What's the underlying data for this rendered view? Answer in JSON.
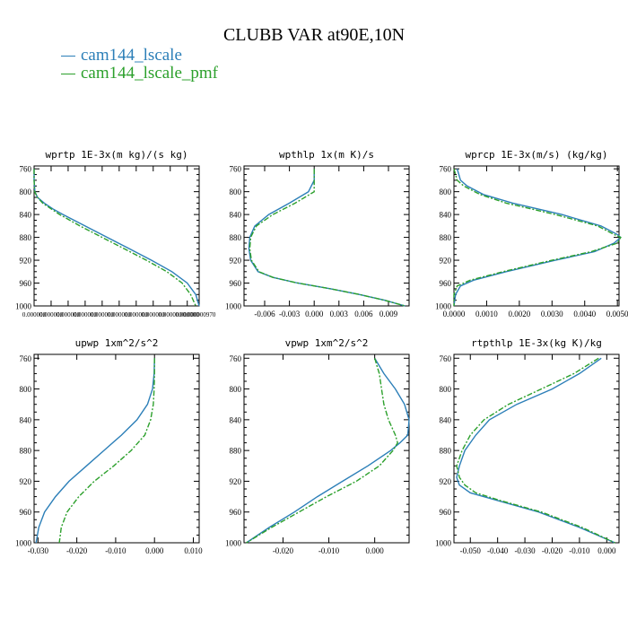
{
  "title": "CLUBB VAR at90E,10N",
  "colors": {
    "series_1": "#2c7fb8",
    "series_2": "#2ca02c"
  },
  "legend": [
    {
      "label": "cam144_lscale"
    },
    {
      "label": "cam144_lscale_pmf"
    }
  ],
  "chart_data": [
    {
      "type": "line",
      "title": "wprtp  1E-3x(m kg)/(s kg)",
      "xlim": [
        0.0,
        9.7e-07
      ],
      "ylim": [
        1000,
        755
      ],
      "yticks": [
        760,
        800,
        840,
        880,
        920,
        960,
        1000
      ],
      "xticks": [
        0.0,
        1e-07,
        2e-07,
        3e-07,
        4e-07,
        5e-07,
        6e-07,
        7e-07,
        8e-07,
        9e-07
      ],
      "xtick_labels": [
        "0.000000",
        "0.000000",
        "0.000000",
        "0.000000",
        "0.000000",
        "0.000000",
        "0.000000",
        "0.000000",
        "0.000000",
        "0.000000"
      ],
      "x_end_label": "0.000000970",
      "series": [
        {
          "name": "cam144_lscale",
          "y": [
            760,
            780,
            800,
            810,
            820,
            830,
            840,
            860,
            880,
            900,
            920,
            940,
            960,
            980,
            1000
          ],
          "x": [
            0.0,
            0.0,
            5e-09,
            2e-08,
            6e-08,
            1.1e-07,
            1.7e-07,
            3e-07,
            4.3e-07,
            5.6e-07,
            6.9e-07,
            8.1e-07,
            9e-07,
            9.5e-07,
            9.7e-07
          ]
        },
        {
          "name": "cam144_lscale_pmf",
          "y": [
            760,
            780,
            800,
            810,
            820,
            830,
            840,
            860,
            880,
            900,
            920,
            940,
            960,
            980,
            1000
          ],
          "x": [
            0.0,
            0.0,
            3e-09,
            2e-08,
            5e-08,
            1e-07,
            1.5e-07,
            2.7e-07,
            4e-07,
            5.3e-07,
            6.6e-07,
            7.8e-07,
            8.7e-07,
            9.2e-07,
            9.5e-07
          ]
        }
      ]
    },
    {
      "type": "line",
      "title": "wpthlp  1x(m K)/s",
      "xlim": [
        -0.0085,
        0.0115
      ],
      "ylim": [
        1000,
        755
      ],
      "yticks": [
        760,
        800,
        840,
        880,
        920,
        960,
        1000
      ],
      "xticks": [
        -0.006,
        -0.003,
        0.0,
        0.003,
        0.006,
        0.009
      ],
      "xtick_labels": [
        "-0.006",
        "-0.003",
        "0.000",
        "0.003",
        "0.006",
        "0.009"
      ],
      "series": [
        {
          "name": "cam144_lscale",
          "y": [
            760,
            780,
            800,
            820,
            840,
            860,
            880,
            900,
            920,
            940,
            950,
            960,
            970,
            980,
            990,
            1000
          ],
          "x": [
            0.0,
            0.0,
            -0.0007,
            -0.003,
            -0.0055,
            -0.0072,
            -0.0078,
            -0.0079,
            -0.0077,
            -0.0068,
            -0.005,
            -0.002,
            0.002,
            0.0055,
            0.0085,
            0.011
          ]
        },
        {
          "name": "cam144_lscale_pmf",
          "y": [
            760,
            780,
            800,
            820,
            840,
            860,
            880,
            900,
            920,
            940,
            950,
            960,
            970,
            980,
            990,
            1000
          ],
          "x": [
            0.0,
            0.0,
            0.0,
            -0.0023,
            -0.005,
            -0.007,
            -0.0077,
            -0.0078,
            -0.0076,
            -0.0067,
            -0.005,
            -0.002,
            0.002,
            0.0055,
            0.0085,
            0.011
          ]
        }
      ]
    },
    {
      "type": "line",
      "title": "wprcp  1E-3x(m/s) (kg/kg)",
      "xlim": [
        0.0,
        0.00505
      ],
      "ylim": [
        1000,
        755
      ],
      "yticks": [
        760,
        800,
        840,
        880,
        920,
        960,
        1000
      ],
      "xticks": [
        0.0,
        0.001,
        0.002,
        0.003,
        0.004,
        0.005
      ],
      "xtick_labels": [
        "0.0000",
        "0.0010",
        "0.0020",
        "0.0030",
        "0.0040",
        "0.0050"
      ],
      "series": [
        {
          "name": "cam144_lscale",
          "y": [
            760,
            780,
            790,
            805,
            820,
            840,
            860,
            875,
            880,
            890,
            905,
            920,
            940,
            955,
            965,
            980,
            1000
          ],
          "x": [
            0.0001,
            0.0002,
            0.0004,
            0.0009,
            0.0018,
            0.0033,
            0.0045,
            0.005,
            0.0051,
            0.0049,
            0.0043,
            0.0031,
            0.0016,
            0.0006,
            0.0002,
            5e-05,
            0.0
          ]
        },
        {
          "name": "cam144_lscale_pmf",
          "y": [
            760,
            780,
            790,
            805,
            820,
            840,
            860,
            875,
            880,
            890,
            905,
            920,
            940,
            955,
            965,
            980,
            1000
          ],
          "x": [
            0.0,
            0.0001,
            0.0003,
            0.0008,
            0.0016,
            0.0031,
            0.0044,
            0.0049,
            0.0051,
            0.005,
            0.0042,
            0.003,
            0.0015,
            0.0005,
            0.0001,
            0.0,
            0.0
          ]
        }
      ]
    },
    {
      "type": "line",
      "title": "upwp  1xm^2/s^2",
      "xlim": [
        -0.031,
        0.0115
      ],
      "ylim": [
        1000,
        755
      ],
      "yticks": [
        760,
        800,
        840,
        880,
        920,
        960,
        1000
      ],
      "xticks": [
        -0.03,
        -0.02,
        -0.01,
        0.0,
        0.01
      ],
      "xtick_labels": [
        "-0.030",
        "-0.020",
        "-0.010",
        "0.000",
        "0.010"
      ],
      "series": [
        {
          "name": "cam144_lscale",
          "y": [
            760,
            780,
            800,
            820,
            840,
            860,
            880,
            900,
            920,
            940,
            960,
            980,
            1000
          ],
          "x": [
            0.0,
            -0.0001,
            -0.0005,
            -0.0018,
            -0.0045,
            -0.0085,
            -0.013,
            -0.0175,
            -0.022,
            -0.0255,
            -0.0283,
            -0.0298,
            -0.0305
          ]
        },
        {
          "name": "cam144_lscale_pmf",
          "y": [
            760,
            780,
            800,
            820,
            840,
            860,
            880,
            900,
            920,
            940,
            960,
            980,
            1000
          ],
          "x": [
            0.0,
            0.0,
            -0.0001,
            -0.0003,
            -0.001,
            -0.0025,
            -0.006,
            -0.0105,
            -0.0155,
            -0.0195,
            -0.0225,
            -0.024,
            -0.0245
          ]
        }
      ]
    },
    {
      "type": "line",
      "title": "vpwp  1xm^2/s^2",
      "xlim": [
        -0.0285,
        0.0075
      ],
      "ylim": [
        1000,
        755
      ],
      "yticks": [
        760,
        800,
        840,
        880,
        920,
        960,
        1000
      ],
      "xticks": [
        -0.02,
        -0.01,
        0.0
      ],
      "xtick_labels": [
        "-0.020",
        "-0.010",
        "0.000"
      ],
      "series": [
        {
          "name": "cam144_lscale",
          "y": [
            760,
            770,
            780,
            800,
            820,
            840,
            860,
            870,
            880,
            900,
            920,
            940,
            960,
            980,
            1000
          ],
          "x": [
            0.0,
            0.001,
            0.002,
            0.0045,
            0.0065,
            0.0075,
            0.0072,
            0.0055,
            0.0035,
            -0.0015,
            -0.007,
            -0.0125,
            -0.0175,
            -0.023,
            -0.028
          ]
        },
        {
          "name": "cam144_lscale_pmf",
          "y": [
            760,
            770,
            780,
            800,
            820,
            840,
            860,
            870,
            880,
            900,
            920,
            940,
            960,
            980,
            1000
          ],
          "x": [
            0.0,
            0.0005,
            0.001,
            0.0015,
            0.002,
            0.003,
            0.0045,
            0.005,
            0.004,
            0.001,
            -0.004,
            -0.0105,
            -0.0165,
            -0.0225,
            -0.028
          ]
        }
      ]
    },
    {
      "type": "line",
      "title": "rtpthlp  1E-3x(kg K)/kg",
      "xlim": [
        -0.056,
        0.0045
      ],
      "ylim": [
        1000,
        755
      ],
      "yticks": [
        760,
        800,
        840,
        880,
        920,
        960,
        1000
      ],
      "xticks": [
        -0.05,
        -0.04,
        -0.03,
        -0.02,
        -0.01,
        0.0
      ],
      "xtick_labels": [
        "-0.050",
        "-0.040",
        "-0.030",
        "-0.020",
        "-0.010",
        "0.000"
      ],
      "series": [
        {
          "name": "cam144_lscale",
          "y": [
            760,
            780,
            800,
            820,
            840,
            860,
            880,
            900,
            915,
            925,
            935,
            945,
            960,
            980,
            1000
          ],
          "x": [
            -0.002,
            -0.01,
            -0.02,
            -0.033,
            -0.043,
            -0.048,
            -0.052,
            -0.054,
            -0.055,
            -0.054,
            -0.05,
            -0.04,
            -0.025,
            -0.01,
            0.003
          ]
        },
        {
          "name": "cam144_lscale_pmf",
          "y": [
            760,
            780,
            800,
            820,
            840,
            860,
            880,
            900,
            915,
            925,
            935,
            945,
            960,
            980,
            1000
          ],
          "x": [
            -0.003,
            -0.012,
            -0.024,
            -0.036,
            -0.045,
            -0.05,
            -0.053,
            -0.055,
            -0.054,
            -0.052,
            -0.048,
            -0.039,
            -0.024,
            -0.009,
            0.003
          ]
        }
      ]
    }
  ]
}
